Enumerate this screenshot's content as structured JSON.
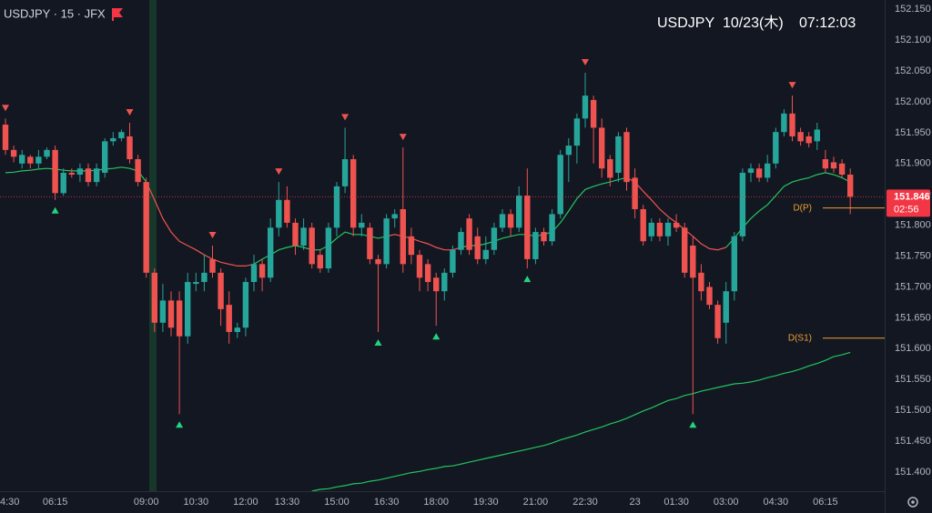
{
  "chart_data": {
    "type": "candlestick",
    "title": "USDJPY · 15 · JFX",
    "symbol": "USDJPY",
    "date": "10/23(木)",
    "time": "07:12:03",
    "categories": [
      "4:30",
      null,
      null,
      null,
      null,
      null,
      "06:15",
      null,
      null,
      null,
      null,
      null,
      null,
      null,
      null,
      null,
      null,
      "09:00",
      null,
      null,
      null,
      null,
      null,
      "10:30",
      null,
      null,
      null,
      null,
      null,
      "12:00",
      null,
      null,
      null,
      null,
      "13:30",
      null,
      null,
      null,
      null,
      null,
      "15:00",
      null,
      null,
      null,
      null,
      null,
      "16:30",
      null,
      null,
      null,
      null,
      null,
      "18:00",
      null,
      null,
      null,
      null,
      null,
      "19:30",
      null,
      null,
      null,
      null,
      null,
      "21:00",
      null,
      null,
      null,
      null,
      null,
      "22:30",
      null,
      null,
      null,
      null,
      null,
      "23",
      null,
      null,
      null,
      null,
      "01:30",
      null,
      null,
      null,
      null,
      null,
      "03:00",
      null,
      null,
      null,
      null,
      null,
      "04:30",
      null,
      null,
      null,
      null,
      null,
      "06:15",
      null,
      null,
      null
    ],
    "open": [
      151.963,
      151.922,
      151.9,
      151.911,
      151.9,
      151.911,
      151.922,
      151.852,
      151.885,
      151.882,
      151.892,
      151.87,
      151.885,
      151.936,
      151.941,
      151.944,
      151.907,
      151.87,
      151.723,
      151.642,
      151.678,
      151.678,
      151.62,
      151.705,
      151.708,
      151.745,
      151.723,
      151.671,
      151.627,
      151.634,
      151.708,
      151.737,
      151.715,
      151.796,
      151.841,
      151.804,
      151.767,
      151.796,
      151.752,
      151.73,
      151.796,
      151.863,
      151.907,
      151.796,
      151.796,
      151.745,
      151.737,
      151.811,
      151.826,
      151.782,
      151.752,
      151.737,
      151.715,
      151.693,
      151.723,
      151.76,
      151.811,
      151.782,
      151.745,
      151.76,
      151.796,
      151.818,
      151.796,
      151.848,
      151.745,
      151.789,
      151.774,
      151.818,
      151.914,
      151.929,
      151.973,
      152.003,
      151.958,
      151.907,
      151.885,
      151.951,
      151.877,
      151.826,
      151.782,
      151.804,
      151.782,
      151.804,
      151.796,
      151.767,
      151.723,
      151.7,
      151.671,
      151.642,
      151.693,
      151.782,
      151.885,
      151.892,
      151.877,
      151.9,
      151.951,
      151.981,
      151.951,
      151.944,
      151.936,
      151.907,
      151.902,
      151.9,
      151.882
    ],
    "high": [
      151.973,
      151.929,
      151.922,
      151.914,
      151.922,
      151.926,
      151.929,
      151.892,
      151.892,
      151.9,
      151.9,
      151.9,
      151.941,
      151.951,
      151.955,
      151.966,
      151.914,
      151.877,
      151.73,
      151.705,
      151.693,
      151.693,
      151.723,
      151.723,
      151.752,
      151.767,
      151.73,
      151.693,
      151.642,
      151.715,
      151.752,
      151.745,
      151.811,
      151.87,
      151.863,
      151.811,
      151.811,
      151.804,
      151.76,
      151.804,
      151.87,
      151.958,
      151.914,
      151.818,
      151.804,
      151.752,
      151.818,
      151.826,
      151.926,
      151.796,
      151.76,
      151.745,
      151.723,
      151.73,
      151.767,
      151.796,
      151.818,
      151.796,
      151.782,
      151.804,
      151.826,
      151.826,
      151.863,
      151.892,
      151.796,
      151.796,
      151.826,
      151.922,
      151.941,
      151.981,
      152.047,
      152.01,
      151.973,
      151.914,
      151.951,
      151.958,
      151.892,
      151.833,
      151.811,
      151.811,
      151.811,
      151.818,
      151.804,
      151.782,
      151.737,
      151.708,
      151.678,
      151.708,
      151.789,
      151.892,
      151.9,
      151.9,
      151.914,
      151.958,
      151.988,
      152.01,
      151.958,
      151.951,
      151.966,
      151.922,
      151.911,
      151.907,
      151.892
    ],
    "low": [
      151.914,
      151.902,
      151.892,
      151.892,
      151.892,
      151.907,
      151.841,
      151.848,
      151.877,
      151.87,
      151.863,
      151.863,
      151.877,
      151.929,
      151.936,
      151.9,
      151.863,
      151.715,
      151.627,
      151.627,
      151.62,
      151.494,
      151.608,
      151.693,
      151.693,
      151.715,
      151.637,
      151.608,
      151.617,
      151.62,
      151.693,
      151.693,
      151.708,
      151.782,
      151.796,
      151.752,
      151.76,
      151.73,
      151.723,
      151.723,
      151.782,
      151.852,
      151.782,
      151.782,
      151.737,
      151.627,
      151.73,
      151.796,
      151.723,
      151.737,
      151.693,
      151.693,
      151.637,
      151.678,
      151.715,
      151.752,
      151.752,
      151.737,
      151.737,
      151.752,
      151.789,
      151.782,
      151.789,
      151.73,
      151.737,
      151.767,
      151.767,
      151.811,
      151.87,
      151.9,
      151.958,
      151.9,
      151.877,
      151.863,
      151.87,
      151.856,
      151.811,
      151.767,
      151.774,
      151.774,
      151.767,
      151.789,
      151.715,
      151.494,
      151.678,
      151.664,
      151.608,
      151.608,
      151.678,
      151.774,
      151.87,
      151.87,
      151.87,
      151.892,
      151.944,
      151.936,
      151.929,
      151.926,
      151.922,
      151.885,
      151.885,
      151.877,
      151.818
    ],
    "close": [
      151.922,
      151.911,
      151.914,
      151.9,
      151.911,
      151.922,
      151.852,
      151.885,
      151.882,
      151.892,
      151.87,
      151.892,
      151.936,
      151.941,
      151.951,
      151.907,
      151.87,
      151.723,
      151.642,
      151.678,
      151.634,
      151.62,
      151.708,
      151.708,
      151.723,
      151.723,
      151.664,
      151.627,
      151.634,
      151.708,
      151.737,
      151.715,
      151.796,
      151.841,
      151.804,
      151.767,
      151.796,
      151.737,
      151.73,
      151.796,
      151.863,
      151.907,
      151.796,
      151.804,
      151.745,
      151.737,
      151.811,
      151.818,
      151.737,
      151.752,
      151.715,
      151.708,
      151.693,
      151.723,
      151.76,
      151.789,
      151.76,
      151.745,
      151.76,
      151.796,
      151.818,
      151.796,
      151.848,
      151.745,
      151.789,
      151.774,
      151.818,
      151.914,
      151.929,
      151.973,
      152.01,
      151.958,
      151.892,
      151.877,
      151.944,
      151.87,
      151.826,
      151.774,
      151.804,
      151.782,
      151.804,
      151.796,
      151.723,
      151.715,
      151.693,
      151.671,
      151.617,
      151.693,
      151.782,
      151.885,
      151.892,
      151.877,
      151.9,
      151.951,
      151.981,
      151.944,
      151.936,
      151.933,
      151.955,
      151.892,
      151.892,
      151.882,
      151.846
    ],
    "up_color": "#26a69a",
    "down_color": "#ef5350",
    "ylim": [
      151.369,
      152.165
    ],
    "yticks": [
      {
        "value": 151.4,
        "label": "151.400"
      },
      {
        "value": 151.45,
        "label": "151.450"
      },
      {
        "value": 151.5,
        "label": "151.500"
      },
      {
        "value": 151.55,
        "label": "151.550"
      },
      {
        "value": 151.6,
        "label": "151.600"
      },
      {
        "value": 151.65,
        "label": "151.650"
      },
      {
        "value": 151.7,
        "label": "151.700"
      },
      {
        "value": 151.75,
        "label": "151.750"
      },
      {
        "value": 151.8,
        "label": "151.800"
      },
      {
        "value": 151.85,
        "label": "151.850"
      },
      {
        "value": 151.9,
        "label": "151.900"
      },
      {
        "value": 151.95,
        "label": "151.950"
      },
      {
        "value": 152,
        "label": "152.000"
      },
      {
        "value": 152.05,
        "label": "152.050"
      },
      {
        "value": 152.1,
        "label": "152.100"
      },
      {
        "value": 152.15,
        "label": "152.150"
      }
    ],
    "grid": false,
    "overlays": [
      {
        "color": "#22c55e",
        "values": [
          151.885,
          151.886,
          151.888,
          151.889,
          151.891,
          151.892,
          151.891,
          151.889,
          151.888,
          151.888,
          151.888,
          151.889,
          151.891,
          151.892,
          151.894,
          151.892,
          151.888,
          151.87,
          null,
          null,
          null,
          null,
          null,
          null,
          null,
          null,
          null,
          null,
          null,
          null,
          151.737,
          151.745,
          151.752,
          151.76,
          151.764,
          151.767,
          151.764,
          151.76,
          151.76,
          151.767,
          151.779,
          151.789,
          151.785,
          151.785,
          151.782,
          151.779,
          151.782,
          null,
          null,
          null,
          null,
          null,
          null,
          null,
          null,
          151.764,
          151.767,
          151.767,
          151.77,
          151.774,
          151.779,
          151.782,
          151.785,
          151.785,
          151.782,
          151.785,
          151.789,
          151.804,
          151.823,
          151.843,
          151.858,
          151.863,
          151.867,
          151.87,
          151.874,
          151.877,
          null,
          null,
          null,
          null,
          null,
          null,
          null,
          null,
          null,
          null,
          null,
          151.764,
          151.779,
          151.796,
          151.811,
          151.823,
          151.833,
          151.848,
          151.863,
          151.87,
          151.874,
          151.877,
          151.882,
          151.885,
          151.882,
          151.877,
          151.87
        ]
      },
      {
        "color": "#ef5350",
        "values": [
          null,
          null,
          null,
          null,
          null,
          null,
          null,
          null,
          null,
          null,
          null,
          null,
          null,
          null,
          null,
          null,
          null,
          151.87,
          151.841,
          151.811,
          151.789,
          151.774,
          151.767,
          151.76,
          151.752,
          151.745,
          151.74,
          151.737,
          151.734,
          151.734,
          151.737,
          null,
          null,
          null,
          null,
          null,
          null,
          null,
          null,
          null,
          null,
          null,
          null,
          null,
          null,
          null,
          151.782,
          151.785,
          151.782,
          151.779,
          151.774,
          151.77,
          151.764,
          151.76,
          151.76,
          151.764,
          null,
          null,
          null,
          null,
          null,
          null,
          null,
          null,
          null,
          null,
          null,
          null,
          null,
          null,
          null,
          null,
          null,
          null,
          null,
          151.877,
          151.87,
          151.855,
          151.841,
          151.826,
          151.814,
          151.804,
          151.793,
          151.782,
          151.77,
          151.762,
          151.76,
          151.764,
          null,
          null,
          null,
          null,
          null,
          null,
          null,
          null,
          null,
          null,
          null,
          null,
          null,
          null,
          null
        ]
      },
      {
        "color": "#22c55e",
        "values": [
          null,
          null,
          null,
          null,
          null,
          null,
          null,
          null,
          null,
          null,
          null,
          null,
          null,
          null,
          null,
          null,
          null,
          null,
          null,
          null,
          null,
          null,
          null,
          null,
          null,
          null,
          null,
          null,
          null,
          null,
          null,
          null,
          null,
          null,
          null,
          null,
          null,
          151.369,
          151.372,
          151.373,
          151.376,
          151.378,
          151.381,
          151.382,
          151.385,
          151.387,
          151.39,
          151.393,
          151.396,
          151.399,
          151.401,
          151.404,
          151.406,
          151.409,
          151.41,
          151.413,
          151.416,
          151.419,
          151.422,
          151.425,
          151.428,
          151.431,
          151.434,
          151.437,
          151.44,
          151.443,
          151.447,
          151.452,
          151.456,
          151.46,
          151.465,
          151.469,
          151.473,
          151.478,
          151.482,
          151.487,
          151.493,
          151.499,
          151.504,
          151.51,
          151.516,
          151.519,
          151.524,
          151.527,
          151.531,
          151.534,
          151.537,
          151.54,
          151.543,
          151.544,
          151.546,
          151.549,
          151.553,
          151.556,
          151.56,
          151.563,
          151.567,
          151.572,
          151.576,
          151.581,
          151.587,
          151.59,
          151.594
        ]
      }
    ],
    "fractal_highs": [
      0,
      15,
      25,
      33,
      41,
      48,
      70,
      95
    ],
    "fractal_lows": [
      6,
      21,
      45,
      52,
      63,
      83
    ],
    "fractal_high_color": "#ef5350",
    "fractal_low_color": "#22d37f",
    "last_price": 151.846,
    "last_price_color": "#f23645",
    "countdown": "02:56",
    "levels": [
      {
        "label": "D(P)",
        "value": 151.828
      },
      {
        "label": "D(S1)",
        "value": 151.617
      }
    ],
    "level_color": "#f0a030"
  }
}
